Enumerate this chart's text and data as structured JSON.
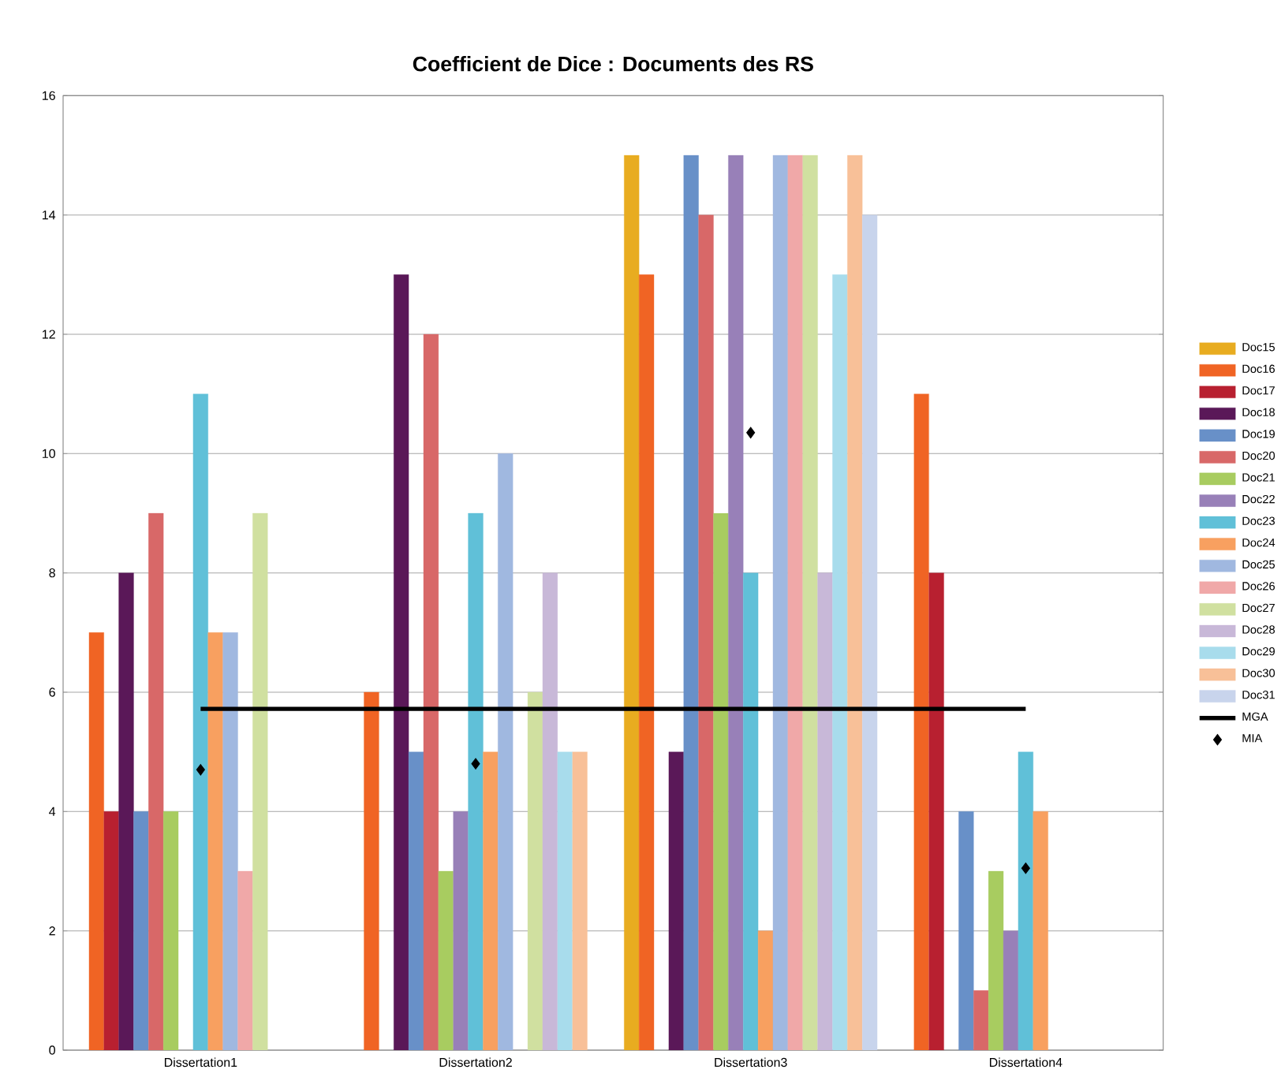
{
  "chart_data": {
    "type": "bar",
    "title": "Coefficient de Dice : Documents des RS",
    "categories": [
      "Dissertation1",
      "Dissertation2",
      "Dissertation3",
      "Dissertation4"
    ],
    "ylim": [
      0,
      16
    ],
    "yticks": [
      0,
      2,
      4,
      6,
      8,
      10,
      12,
      14,
      16
    ],
    "grid": "y",
    "legend": "right",
    "series": [
      {
        "name": "Doc15",
        "color": "#e8ac20",
        "values": [
          null,
          null,
          15,
          null
        ]
      },
      {
        "name": "Doc16",
        "color": "#f06424",
        "values": [
          7,
          6,
          13,
          11
        ]
      },
      {
        "name": "Doc17",
        "color": "#b82030",
        "values": [
          4,
          null,
          null,
          8
        ]
      },
      {
        "name": "Doc18",
        "color": "#5a1858",
        "values": [
          8,
          13,
          5,
          null
        ]
      },
      {
        "name": "Doc19",
        "color": "#6890c8",
        "values": [
          4,
          5,
          15,
          4
        ]
      },
      {
        "name": "Doc20",
        "color": "#d86868",
        "values": [
          9,
          12,
          14,
          1
        ]
      },
      {
        "name": "Doc21",
        "color": "#a8cc60",
        "values": [
          4,
          3,
          9,
          3
        ]
      },
      {
        "name": "Doc22",
        "color": "#9880b8",
        "values": [
          null,
          4,
          15,
          2
        ]
      },
      {
        "name": "Doc23",
        "color": "#60c0d8",
        "values": [
          11,
          9,
          8,
          5
        ]
      },
      {
        "name": "Doc24",
        "color": "#f8a060",
        "values": [
          7,
          5,
          2,
          4
        ]
      },
      {
        "name": "Doc25",
        "color": "#a0b8e0",
        "values": [
          7,
          10,
          15,
          null
        ]
      },
      {
        "name": "Doc26",
        "color": "#f0a8a8",
        "values": [
          3,
          null,
          15,
          null
        ]
      },
      {
        "name": "Doc27",
        "color": "#d0e0a0",
        "values": [
          9,
          6,
          15,
          null
        ]
      },
      {
        "name": "Doc28",
        "color": "#c8b8d8",
        "values": [
          null,
          8,
          8,
          null
        ]
      },
      {
        "name": "Doc29",
        "color": "#a8dcec",
        "values": [
          null,
          5,
          13,
          null
        ]
      },
      {
        "name": "Doc30",
        "color": "#f8c098",
        "values": [
          null,
          5,
          15,
          null
        ]
      },
      {
        "name": "Doc31",
        "color": "#c8d4ec",
        "values": [
          null,
          null,
          14,
          null
        ]
      },
      {
        "name": "MGA",
        "type": "line",
        "color": "#000000",
        "values": [
          5.72,
          5.72,
          5.72,
          5.72
        ]
      },
      {
        "name": "MIA",
        "type": "scatter",
        "marker": "diamond",
        "color": "#000000",
        "values": [
          4.7,
          4.8,
          10.35,
          3.05
        ]
      }
    ]
  }
}
